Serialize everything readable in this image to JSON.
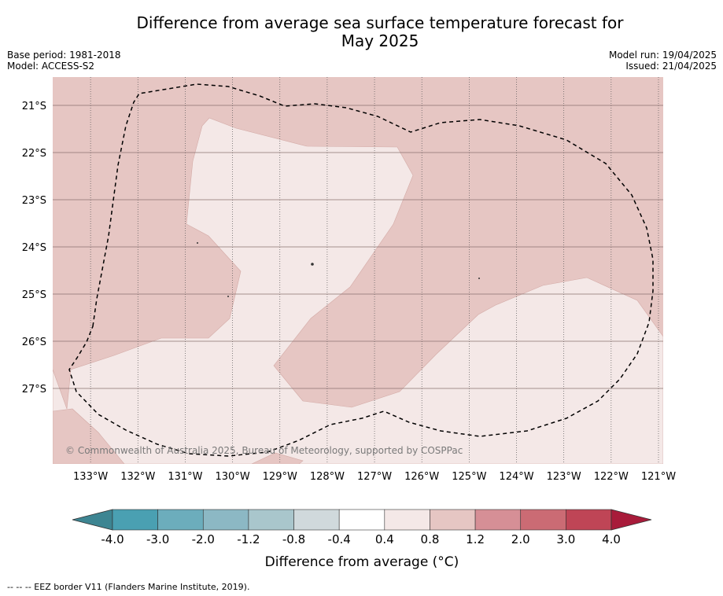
{
  "title_line1": "Difference from average sea surface temperature forecast for",
  "title_line2": "May 2025",
  "base_period": "Base period: 1981-2018",
  "model": "Model: ACCESS-S2",
  "model_run": "Model run: 19/04/2025",
  "issued": "Issued: 21/04/2025",
  "map": {
    "lon_labels": [
      "133°W",
      "132°W",
      "131°W",
      "130°W",
      "129°W",
      "128°W",
      "127°W",
      "126°W",
      "125°W",
      "124°W",
      "123°W",
      "122°W",
      "121°W"
    ],
    "lat_labels": [
      "21°S",
      "22°S",
      "23°S",
      "24°S",
      "25°S",
      "26°S",
      "27°S"
    ],
    "lon_range": [
      -133.8,
      -120.9
    ],
    "lat_range": [
      -28.6,
      -20.4
    ],
    "copyright": "© Commonwealth of Australia 2025, Bureau of Meteorology, supported by COSPPac",
    "colors": {
      "anomaly_0p4_0p8": "#f4e8e7",
      "anomaly_0p8_1p2": "#e6c6c3"
    }
  },
  "colorbar": {
    "ticks": [
      "-4.0",
      "-3.0",
      "-2.0",
      "-1.2",
      "-0.8",
      "-0.4",
      "0.4",
      "0.8",
      "1.2",
      "2.0",
      "3.0",
      "4.0"
    ],
    "colors": [
      "#3d8592",
      "#4aa0b2",
      "#6cadbc",
      "#8cb8c4",
      "#a9c6cc",
      "#d0d9dc",
      "#ffffff",
      "#f4e8e7",
      "#e6c6c3",
      "#d68f96",
      "#cb6b74",
      "#bf4556",
      "#a81b3a"
    ],
    "title": "Difference from average (°C)"
  },
  "footnote": "--  --  -- EEZ border V11 (Flanders Marine Institute, 2019)."
}
